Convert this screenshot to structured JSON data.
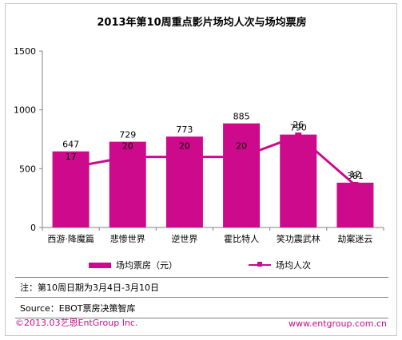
{
  "chart_data": {
    "type": "bar",
    "title": "2013年第10周重点影片场均人次与场均票房",
    "categories": [
      "西游·降魔篇",
      "悲惨世界",
      "逆世界",
      "霍比特人",
      "笑功震武林",
      "劫案迷云"
    ],
    "ylim": [
      0,
      1500
    ],
    "yticks": [
      "0",
      "500",
      "1000",
      "1500"
    ],
    "series": [
      {
        "name": "场均票房（元）",
        "type": "bar",
        "values": [
          647,
          729,
          773,
          885,
          790,
          381
        ],
        "labels": [
          "647",
          "729",
          "773",
          "885",
          "790",
          "381"
        ]
      },
      {
        "name": "场均人次",
        "type": "line",
        "values": [
          17,
          20,
          20,
          20,
          26,
          12
        ],
        "labels": [
          "17",
          "20",
          "20",
          "20",
          "26",
          "12"
        ]
      }
    ],
    "grid": false,
    "legend": "bottom",
    "colors": {
      "series": "#cc0a8b",
      "axis": "#808080"
    }
  },
  "note": "注：第10周日期为3月4日-3月10日",
  "source": "Source：EBOT票房决策智库",
  "footer": {
    "copyright": "©2013.03艺恩EntGroup Inc.",
    "url": "www.entgroup.com.cn"
  }
}
